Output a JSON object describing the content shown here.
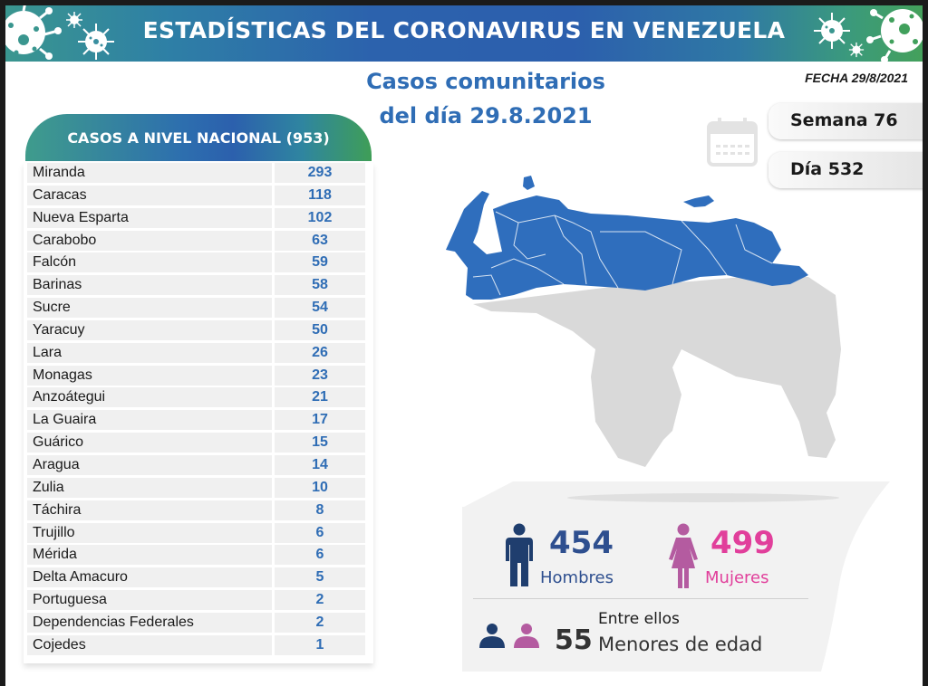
{
  "header": {
    "title": "ESTADÍSTICAS DEL CORONAVIRUS EN VENEZUELA",
    "icons": [
      "virus-icon"
    ]
  },
  "subtitle": {
    "line1": "Casos comunitarios",
    "line2": "del día 29.8.2021"
  },
  "fecha": "FECHA 29/8/2021",
  "calendar": {
    "icon": "calendar-icon",
    "semana": "Semana 76",
    "dia": "Día 532"
  },
  "table": {
    "title": "CASOS A NIVEL NACIONAL (953)",
    "rows": [
      {
        "state": "Miranda",
        "cases": "293"
      },
      {
        "state": "Caracas",
        "cases": "118"
      },
      {
        "state": "Nueva Esparta",
        "cases": "102"
      },
      {
        "state": "Carabobo",
        "cases": "63"
      },
      {
        "state": "Falcón",
        "cases": "59"
      },
      {
        "state": "Barinas",
        "cases": "58"
      },
      {
        "state": "Sucre",
        "cases": "54"
      },
      {
        "state": "Yaracuy",
        "cases": "50"
      },
      {
        "state": "Lara",
        "cases": "26"
      },
      {
        "state": "Monagas",
        "cases": "23"
      },
      {
        "state": "Anzoátegui",
        "cases": "21"
      },
      {
        "state": "La Guaira",
        "cases": "17"
      },
      {
        "state": "Guárico",
        "cases": "15"
      },
      {
        "state": "Aragua",
        "cases": "14"
      },
      {
        "state": "Zulia",
        "cases": "10"
      },
      {
        "state": "Táchira",
        "cases": "8"
      },
      {
        "state": "Trujillo",
        "cases": "6"
      },
      {
        "state": "Mérida",
        "cases": "6"
      },
      {
        "state": "Delta Amacuro",
        "cases": "5"
      },
      {
        "state": "Portuguesa",
        "cases": "2"
      },
      {
        "state": "Dependencias Federales",
        "cases": "2"
      },
      {
        "state": "Cojedes",
        "cases": "1"
      }
    ]
  },
  "stats": {
    "men": {
      "value": "454",
      "label": "Hombres",
      "color": "#2e4f8f"
    },
    "women": {
      "value": "499",
      "label": "Mujeres",
      "color": "#e13f9b"
    },
    "minors": {
      "intro": "Entre ellos",
      "value": "55",
      "label": "Menores de edad"
    }
  },
  "colors": {
    "map_active": "#2f6ebd",
    "map_inactive": "#d9d9d9",
    "accent_blue": "#2f6db5"
  }
}
